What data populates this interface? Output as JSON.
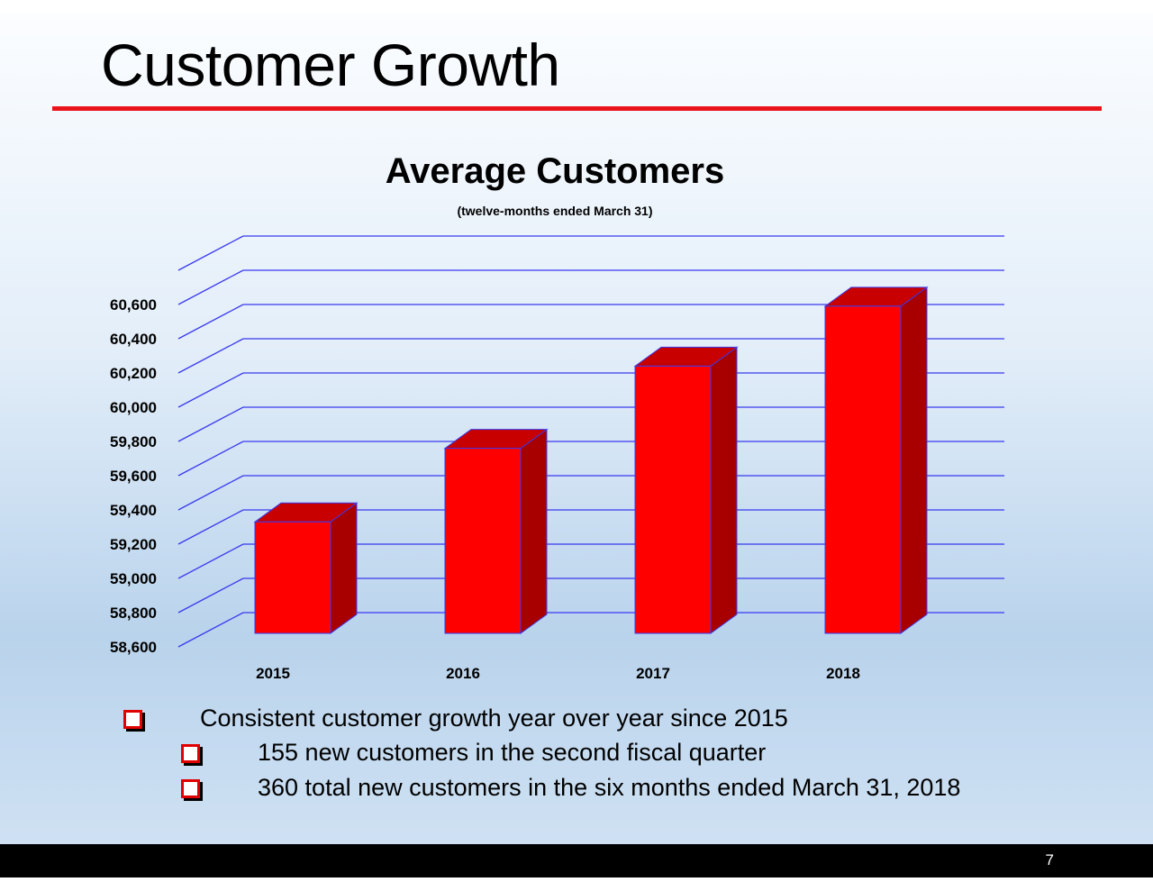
{
  "slide": {
    "title": "Customer Growth",
    "accent_color": "#e8151b",
    "page_number": "7"
  },
  "chart_data": {
    "type": "bar",
    "title": "Average Customers",
    "subtitle": "(twelve-months ended March 31)",
    "categories": [
      "2015",
      "2016",
      "2017",
      "2018"
    ],
    "values": [
      59330,
      59760,
      60240,
      60590
    ],
    "ylim": [
      58600,
      60800
    ],
    "yticks": [
      "58,600",
      "58,800",
      "59,000",
      "59,200",
      "59,400",
      "59,600",
      "59,800",
      "60,000",
      "60,200",
      "60,400",
      "60,600"
    ],
    "grid": true,
    "three_d": true,
    "bar_color": "#ff0000",
    "bar_side_color": "#a80000",
    "bar_top_color": "#c80000",
    "grid_color": "#3a3aee"
  },
  "bullets": [
    {
      "text": "Consistent customer growth year over year since 2015",
      "level": 1
    },
    {
      "text": "155 new customers in the second fiscal quarter",
      "level": 2
    },
    {
      "text": "360 total new customers in the six months ended March 31, 2018",
      "level": 2
    }
  ]
}
